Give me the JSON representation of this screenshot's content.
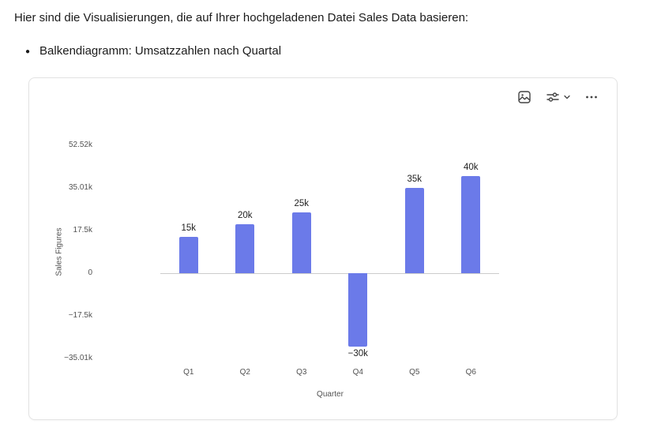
{
  "message": {
    "intro": "Hier sind die Visualisierungen, die auf Ihrer hochgeladenen Datei Sales Data basieren:",
    "bullet": "Balkendiagramm: Umsatzzahlen nach Quartal"
  },
  "card": {
    "toolbar": {
      "buttons": [
        {
          "icon": "image-icon"
        },
        {
          "icon": "sliders-icon",
          "chevron": "chevron-down-icon"
        },
        {
          "icon": "ellipsis-icon"
        }
      ]
    }
  },
  "chart_data": {
    "type": "bar",
    "title": "",
    "categories": [
      "Q1",
      "Q2",
      "Q3",
      "Q4",
      "Q5",
      "Q6"
    ],
    "values": [
      15000,
      20000,
      25000,
      -30000,
      35000,
      40000
    ],
    "value_labels": [
      "15k",
      "20k",
      "25k",
      "−30k",
      "35k",
      "40k"
    ],
    "xlabel": "Quarter",
    "ylabel": "Sales Figures",
    "y_ticks": [
      52520,
      35010,
      17500,
      0,
      -17500,
      -35010
    ],
    "y_tick_labels": [
      "52.52k",
      "35.01k",
      "17.5k",
      "0",
      "−17.5k",
      "−35.01k"
    ],
    "ylim": [
      -35010,
      52520
    ],
    "bar_color": "#6b7ae9",
    "grid": false,
    "legend": "none"
  }
}
